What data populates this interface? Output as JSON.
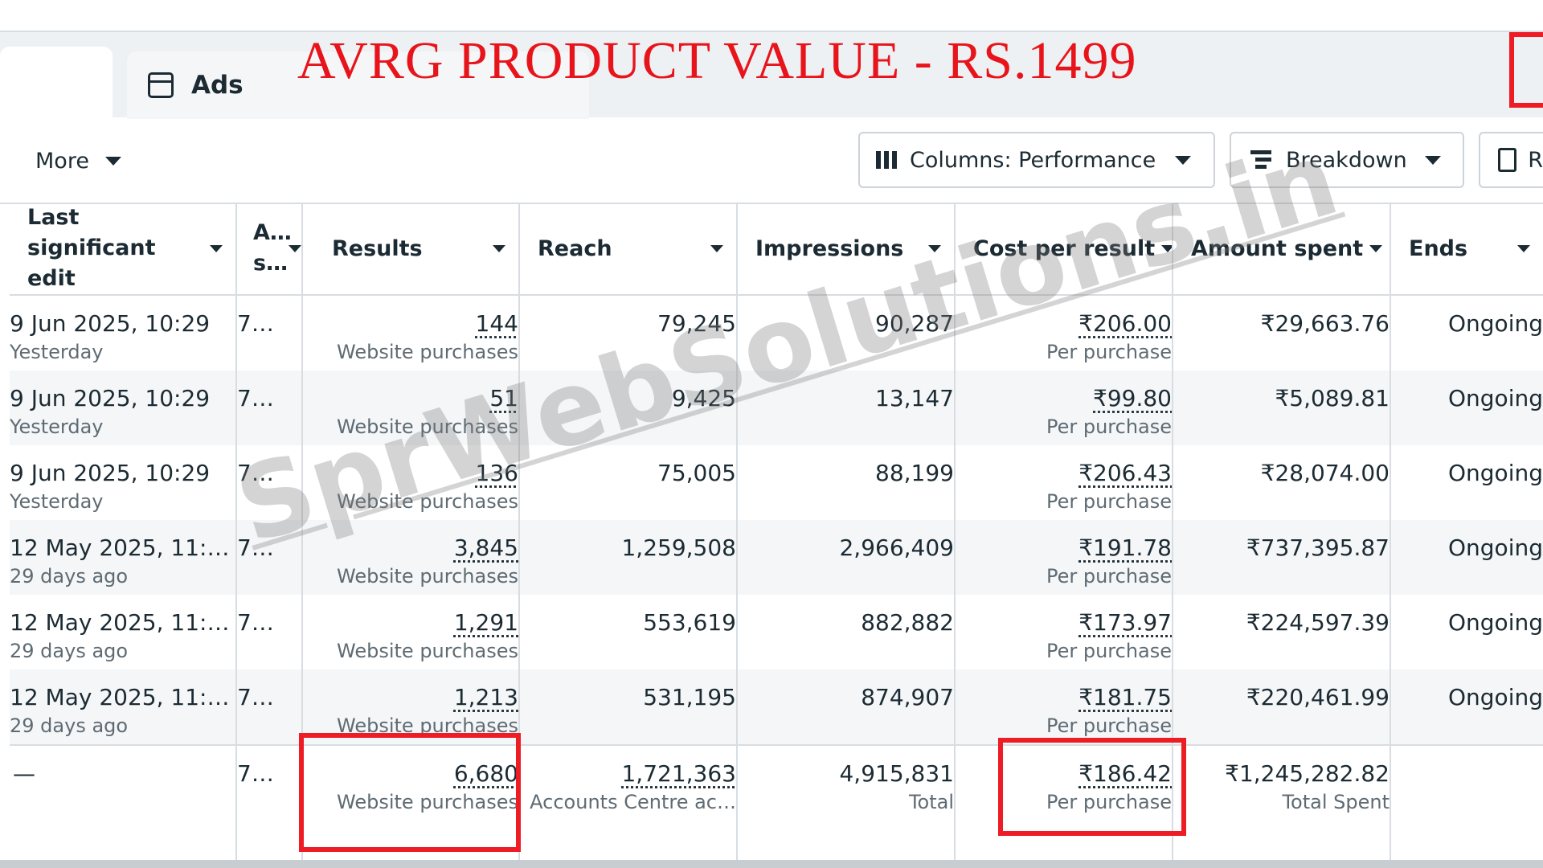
{
  "annotation": "AVRG PRODUCT VALUE - RS.1499",
  "tabs": {
    "ads_label": "Ads"
  },
  "toolbar": {
    "more_label": "More",
    "columns_label": "Columns: Performance",
    "breakdown_label": "Breakdown",
    "reports_label": "R"
  },
  "columns": [
    "Last significant edit",
    "A… s…",
    "Results",
    "Reach",
    "Impressions",
    "Cost per result",
    "Amount spent",
    "Ends"
  ],
  "rows": [
    {
      "edit": "9 Jun 2025, 10:29",
      "edit_sub": "Yesterday",
      "a": "7…",
      "results": "144",
      "results_sub": "Website purchases",
      "reach": "79,245",
      "impressions": "90,287",
      "cpr": "₹206.00",
      "cpr_sub": "Per purchase",
      "spent": "₹29,663.76",
      "ends": "Ongoing"
    },
    {
      "edit": "9 Jun 2025, 10:29",
      "edit_sub": "Yesterday",
      "a": "7…",
      "results": "51",
      "results_sub": "Website purchases",
      "reach": "9,425",
      "impressions": "13,147",
      "cpr": "₹99.80",
      "cpr_sub": "Per purchase",
      "spent": "₹5,089.81",
      "ends": "Ongoing"
    },
    {
      "edit": "9 Jun 2025, 10:29",
      "edit_sub": "Yesterday",
      "a": "7…",
      "results": "136",
      "results_sub": "Website purchases",
      "reach": "75,005",
      "impressions": "88,199",
      "cpr": "₹206.43",
      "cpr_sub": "Per purchase",
      "spent": "₹28,074.00",
      "ends": "Ongoing"
    },
    {
      "edit": "12 May 2025, 11:…",
      "edit_sub": "29 days ago",
      "a": "7…",
      "results": "3,845",
      "results_sub": "Website purchases",
      "reach": "1,259,508",
      "impressions": "2,966,409",
      "cpr": "₹191.78",
      "cpr_sub": "Per purchase",
      "spent": "₹737,395.87",
      "ends": "Ongoing"
    },
    {
      "edit": "12 May 2025, 11:…",
      "edit_sub": "29 days ago",
      "a": "7…",
      "results": "1,291",
      "results_sub": "Website purchases",
      "reach": "553,619",
      "impressions": "882,882",
      "cpr": "₹173.97",
      "cpr_sub": "Per purchase",
      "spent": "₹224,597.39",
      "ends": "Ongoing"
    },
    {
      "edit": "12 May 2025, 11:…",
      "edit_sub": "29 days ago",
      "a": "7…",
      "results": "1,213",
      "results_sub": "Website purchases",
      "reach": "531,195",
      "impressions": "874,907",
      "cpr": "₹181.75",
      "cpr_sub": "Per purchase",
      "spent": "₹220,461.99",
      "ends": "Ongoing"
    }
  ],
  "totals": {
    "edit": "—",
    "a": "7…",
    "results": "6,680",
    "results_sub": "Website purchases",
    "reach": "1,721,363",
    "reach_sub": "Accounts Centre ac…",
    "impressions": "4,915,831",
    "impressions_sub": "Total",
    "cpr": "₹186.42",
    "cpr_sub": "Per purchase",
    "spent": "₹1,245,282.82",
    "spent_sub": "Total Spent"
  },
  "watermark": "SprWebSolutions.in",
  "colors": {
    "annotation": "#e8141b",
    "highlight_box": "#ee1c24"
  }
}
